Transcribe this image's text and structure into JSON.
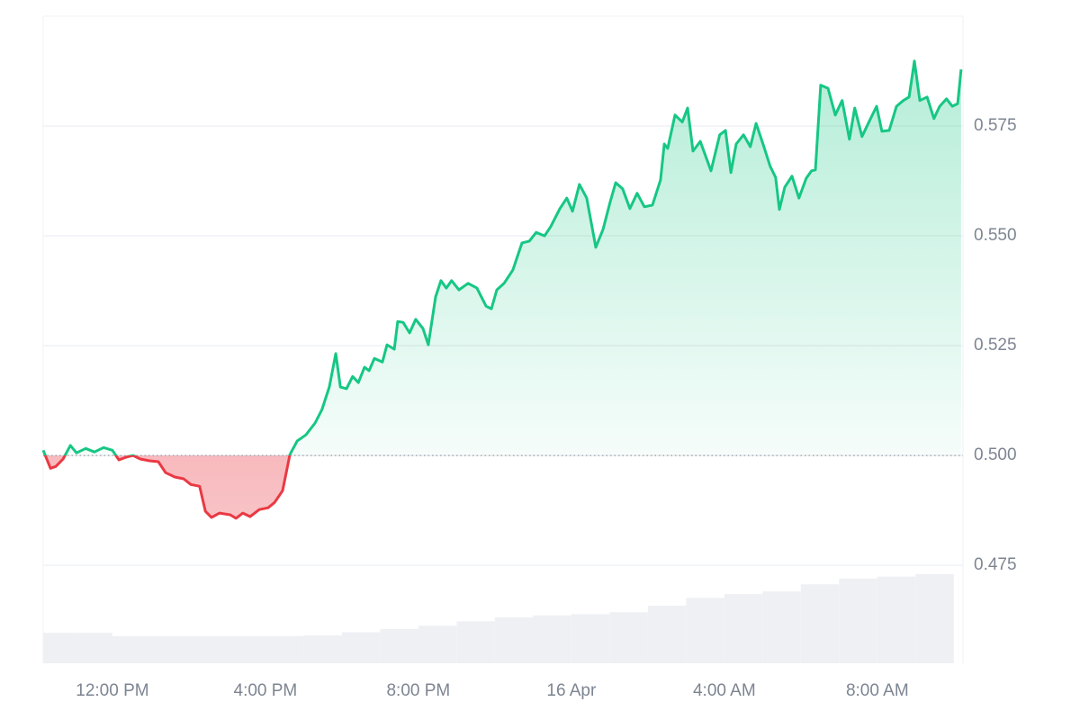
{
  "chart_data": {
    "type": "line",
    "x": [
      10.19,
      10.38,
      10.52,
      10.71,
      10.9,
      11.06,
      11.3,
      11.53,
      11.77,
      12.0,
      12.17,
      12.35,
      12.54,
      12.73,
      12.97,
      13.2,
      13.39,
      13.63,
      13.86,
      14.05,
      14.28,
      14.43,
      14.59,
      14.8,
      15.08,
      15.23,
      15.41,
      15.6,
      15.84,
      16.07,
      16.24,
      16.45,
      16.64,
      16.83,
      17.06,
      17.3,
      17.48,
      17.67,
      17.84,
      17.96,
      18.12,
      18.28,
      18.43,
      18.59,
      18.71,
      18.85,
      19.06,
      19.18,
      19.37,
      19.46,
      19.6,
      19.77,
      19.93,
      20.12,
      20.26,
      20.45,
      20.59,
      20.73,
      20.87,
      21.06,
      21.3,
      21.53,
      21.77,
      21.91,
      22.05,
      22.24,
      22.47,
      22.71,
      22.9,
      23.08,
      23.3,
      23.46,
      23.7,
      23.88,
      24.03,
      24.21,
      24.4,
      24.64,
      24.83,
      25.01,
      25.16,
      25.34,
      25.53,
      25.72,
      25.91,
      26.12,
      26.33,
      26.43,
      26.52,
      26.71,
      26.9,
      27.04,
      27.18,
      27.37,
      27.65,
      27.88,
      28.03,
      28.17,
      28.31,
      28.5,
      28.68,
      28.83,
      29.01,
      29.2,
      29.34,
      29.44,
      29.58,
      29.77,
      29.95,
      30.14,
      30.28,
      30.38,
      30.52,
      30.71,
      30.9,
      31.08,
      31.27,
      31.41,
      31.6,
      31.79,
      31.98,
      32.12,
      32.31,
      32.5,
      32.68,
      32.83,
      32.97,
      33.11,
      33.3,
      33.48,
      33.63,
      33.81,
      33.96,
      34.1,
      34.19
    ],
    "series": [
      {
        "values": [
          0.5012,
          0.4971,
          0.4975,
          0.4992,
          0.5023,
          0.5006,
          0.5016,
          0.5008,
          0.5018,
          0.5012,
          0.499,
          0.4996,
          0.5,
          0.4992,
          0.4988,
          0.4986,
          0.4961,
          0.4951,
          0.4947,
          0.4934,
          0.493,
          0.4873,
          0.4859,
          0.4869,
          0.4865,
          0.4857,
          0.4869,
          0.4861,
          0.4877,
          0.4881,
          0.4893,
          0.492,
          0.5002,
          0.5033,
          0.5047,
          0.5074,
          0.5105,
          0.5156,
          0.5232,
          0.5156,
          0.5152,
          0.518,
          0.5166,
          0.5201,
          0.5193,
          0.5221,
          0.5213,
          0.5252,
          0.5242,
          0.5305,
          0.5303,
          0.5279,
          0.531,
          0.5289,
          0.5252,
          0.5361,
          0.5398,
          0.5381,
          0.5398,
          0.5377,
          0.5392,
          0.5381,
          0.534,
          0.5334,
          0.5377,
          0.5392,
          0.5422,
          0.5484,
          0.5488,
          0.5508,
          0.55,
          0.5521,
          0.5562,
          0.5586,
          0.5556,
          0.5617,
          0.5586,
          0.5474,
          0.5515,
          0.5576,
          0.5621,
          0.5607,
          0.5562,
          0.5597,
          0.5566,
          0.557,
          0.5627,
          0.5709,
          0.5699,
          0.5775,
          0.5759,
          0.5791,
          0.5693,
          0.5715,
          0.5648,
          0.573,
          0.574,
          0.5644,
          0.5709,
          0.573,
          0.5703,
          0.5756,
          0.5709,
          0.5658,
          0.5633,
          0.556,
          0.5611,
          0.5636,
          0.5586,
          0.5631,
          0.5648,
          0.565,
          0.5843,
          0.5836,
          0.5775,
          0.5808,
          0.572,
          0.5791,
          0.5726,
          0.5761,
          0.5795,
          0.5738,
          0.574,
          0.5795,
          0.5808,
          0.5816,
          0.5898,
          0.5808,
          0.5816,
          0.5767,
          0.5795,
          0.5812,
          0.5795,
          0.5801,
          0.5879
        ]
      }
    ],
    "baseline": 0.5,
    "up_color": "#16c784",
    "down_color": "#ea3943",
    "xlim": [
      10.19,
      34.24
    ],
    "xticks": [
      {
        "value": 12,
        "label": "12:00 PM"
      },
      {
        "value": 16,
        "label": "4:00 PM"
      },
      {
        "value": 20,
        "label": "8:00 PM"
      },
      {
        "value": 24,
        "label": "16 Apr"
      },
      {
        "value": 28,
        "label": "4:00 AM"
      },
      {
        "value": 32,
        "label": "8:00 AM"
      }
    ],
    "ylim": [
      0.4527,
      0.6
    ],
    "yticks": [
      0.475,
      {
        "value": 0.5,
        "label": "0.500"
      },
      0.525,
      {
        "value": 0.55,
        "label": "0.550"
      },
      0.575
    ],
    "grid": true,
    "volume": {
      "color": "#eef0f4",
      "x": [
        10.5,
        11.5,
        12.5,
        13.5,
        14.5,
        15.5,
        16.5,
        17.5,
        18.5,
        19.5,
        20.5,
        21.5,
        22.5,
        23.5,
        24.5,
        25.5,
        26.5,
        27.5,
        28.5,
        29.5,
        30.5,
        31.5,
        32.5,
        33.5
      ],
      "values": [
        4.7,
        4.7,
        4.2,
        4.2,
        4.2,
        4.2,
        4.2,
        4.3,
        4.8,
        5.3,
        5.8,
        6.5,
        7.1,
        7.4,
        7.6,
        7.9,
        8.9,
        10.1,
        10.7,
        11.1,
        12.2,
        13.1,
        13.4,
        13.8
      ],
      "ylim": [
        0,
        100
      ]
    }
  }
}
